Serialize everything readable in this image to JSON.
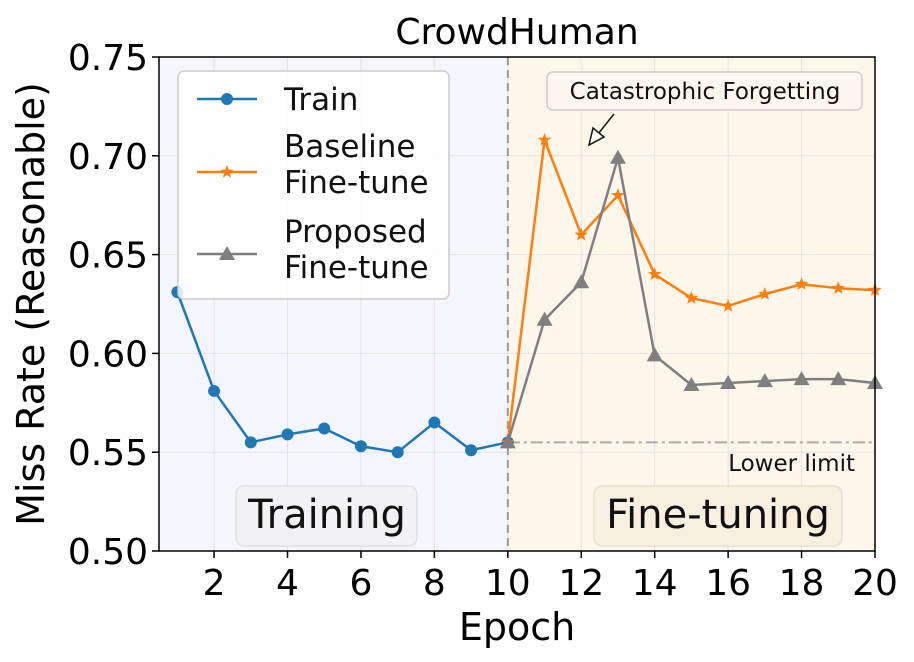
{
  "chart_data": {
    "type": "line",
    "title": "CrowdHuman",
    "xlabel": "Epoch",
    "ylabel": "Miss Rate (Reasonable)",
    "xlim": [
      0.5,
      20
    ],
    "ylim": [
      0.5,
      0.75
    ],
    "xticks": [
      "2",
      "4",
      "6",
      "8",
      "10",
      "12",
      "14",
      "16",
      "18",
      "20"
    ],
    "yticks": [
      "0.50",
      "0.55",
      "0.60",
      "0.65",
      "0.70",
      "0.75"
    ],
    "grid": true,
    "legend_position": "top-left",
    "phase_boundary_epoch": 10,
    "regions": [
      {
        "label": "Training",
        "x_range": [
          0.5,
          10
        ],
        "color": "#f5f6fd"
      },
      {
        "label": "Fine-tuning",
        "x_range": [
          10,
          20
        ],
        "color": "#fdf6ea"
      }
    ],
    "series": [
      {
        "name": "Train",
        "marker": "circle",
        "color": "#1f77b4",
        "x": [
          1,
          2,
          3,
          4,
          5,
          6,
          7,
          8,
          9,
          10
        ],
        "y": [
          0.631,
          0.581,
          0.555,
          0.559,
          0.562,
          0.553,
          0.55,
          0.565,
          0.551,
          0.555
        ]
      },
      {
        "name": "Baseline Fine-tune",
        "marker": "star",
        "color": "#ff7f0e",
        "x": [
          10,
          11,
          12,
          13,
          14,
          15,
          16,
          17,
          18,
          19,
          20
        ],
        "y": [
          0.555,
          0.708,
          0.66,
          0.68,
          0.64,
          0.628,
          0.624,
          0.63,
          0.635,
          0.633,
          0.632
        ]
      },
      {
        "name": "Proposed Fine-tune",
        "marker": "triangle",
        "color": "#7f7f7f",
        "x": [
          10,
          11,
          12,
          13,
          14,
          15,
          16,
          17,
          18,
          19,
          20
        ],
        "y": [
          0.555,
          0.617,
          0.636,
          0.699,
          0.599,
          0.584,
          0.585,
          0.586,
          0.587,
          0.587,
          0.585
        ]
      }
    ],
    "lower_limit": {
      "value": 0.555,
      "label": "Lower limit"
    },
    "annotation": {
      "text": "Catastrophic Forgetting"
    },
    "legend": {
      "train": "Train",
      "baseline_1": "Baseline",
      "baseline_2": "Fine-tune",
      "proposed_1": "Proposed",
      "proposed_2": "Fine-tune"
    }
  }
}
